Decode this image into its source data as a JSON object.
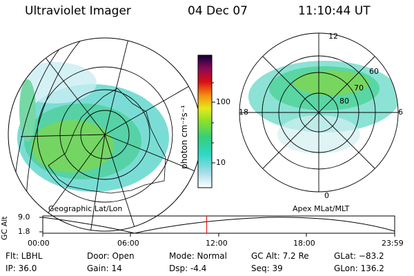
{
  "header": {
    "instrument": "Ultraviolet Imager",
    "date": "04 Dec 07",
    "time": "11:10:44 UT"
  },
  "colorbar": {
    "unit_label": "photon cm⁻²s⁻¹",
    "ticks": [
      "100",
      "10"
    ]
  },
  "left_panel": {
    "label": "Geographic Lat/Lon"
  },
  "right_panel": {
    "label": "Apex  MLat/MLT",
    "mlt_labels": {
      "top": "12",
      "left": "18",
      "right": "6",
      "bottom": "0"
    },
    "lat_labels": [
      "60",
      "70",
      "80"
    ]
  },
  "altitude_plot": {
    "ylabel": "GC Alt",
    "yticks": [
      "9.0",
      "1.8"
    ],
    "xticks": [
      "00:00",
      "06:00",
      "12:00",
      "18:00",
      "23:59"
    ],
    "current_time_hours": 11.18
  },
  "status": {
    "filter": "Flt: LBHL",
    "ip": "IP: 36.0",
    "door": "Door: Open",
    "gain": "Gain: 14",
    "mode": "Mode: Normal",
    "dsp": "Dsp:    -4.4",
    "gc_alt": "GC Alt: 7.2 Re",
    "seq": "Seq: 39",
    "glat": "GLat: −83.2",
    "glon": "GLon: 136.2"
  },
  "colors": {
    "marker": "#e00000"
  }
}
